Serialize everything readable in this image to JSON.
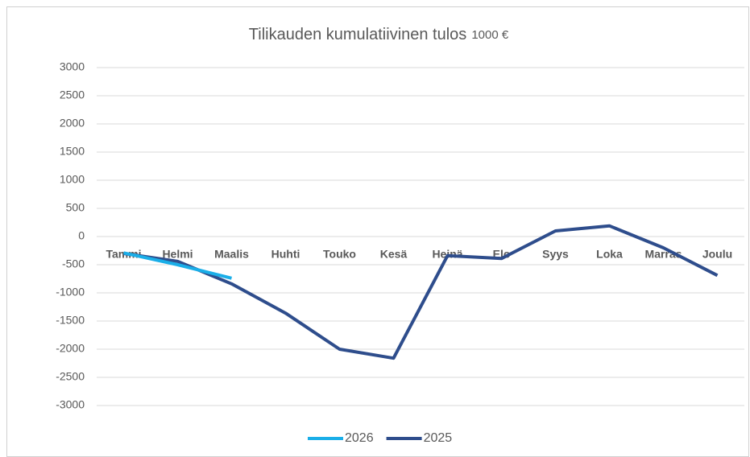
{
  "chart_data": {
    "type": "line",
    "title": "Tilikauden kumulatiivinen tulos",
    "subtitle": "1000 €",
    "categories": [
      "Tammi",
      "Helmi",
      "Maalis",
      "Huhti",
      "Touko",
      "Kesä",
      "Heinä",
      "Elo",
      "Syys",
      "Loka",
      "Marras",
      "Joulu"
    ],
    "series": [
      {
        "name": "2026",
        "color": "#1aaee8",
        "values": [
          -290,
          -500,
          -740,
          null,
          null,
          null,
          null,
          null,
          null,
          null,
          null,
          null
        ]
      },
      {
        "name": "2025",
        "color": "#2e4d8c",
        "values": [
          -300,
          -440,
          -840,
          -1360,
          -2000,
          -2160,
          -340,
          -390,
          100,
          190,
          -200,
          -690
        ]
      }
    ],
    "ylim": [
      -3000,
      3000
    ],
    "yticks": [
      -3000,
      -2500,
      -2000,
      -1500,
      -1000,
      -500,
      0,
      500,
      1000,
      1500,
      2000,
      2500,
      3000
    ],
    "grid": true,
    "legend": "bottom"
  }
}
